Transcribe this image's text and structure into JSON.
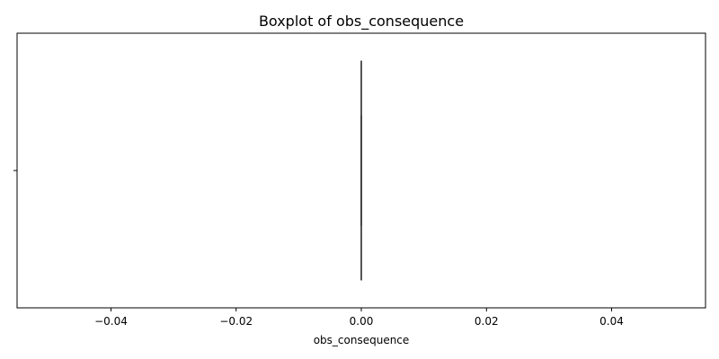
{
  "chart_data": {
    "type": "boxplot",
    "title": "Boxplot of obs_consequence",
    "xlabel": "obs_consequence",
    "ylabel": "",
    "orientation": "horizontal",
    "xlim": [
      -0.055,
      0.055
    ],
    "xticks": [
      -0.04,
      -0.02,
      0.0,
      0.02,
      0.04
    ],
    "xtick_labels": [
      "−0.04",
      "−0.02",
      "0.00",
      "0.02",
      "0.04"
    ],
    "ytick_labels": [
      ""
    ],
    "grid": false,
    "box": {
      "whisker_low": 0.0,
      "q1": 0.0,
      "median": 0.0,
      "q3": 0.0,
      "whisker_high": 0.0,
      "outliers": []
    },
    "colors": {
      "box_line": "#3f3f3f",
      "axes": "#000000",
      "background": "#ffffff"
    }
  }
}
